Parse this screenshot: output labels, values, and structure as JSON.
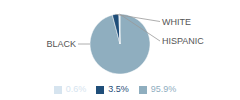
{
  "chart_data": {
    "type": "pie",
    "categories": [
      "BLACK",
      "WHITE",
      "HISPANIC"
    ],
    "values": [
      95.9,
      3.5,
      0.6
    ],
    "value_labels": [
      "95.9%",
      "3.5%",
      "0.6%"
    ],
    "colors": [
      "#8FAEBF",
      "#1F4E79",
      "#D6E4EF"
    ],
    "legend": "bottom"
  }
}
